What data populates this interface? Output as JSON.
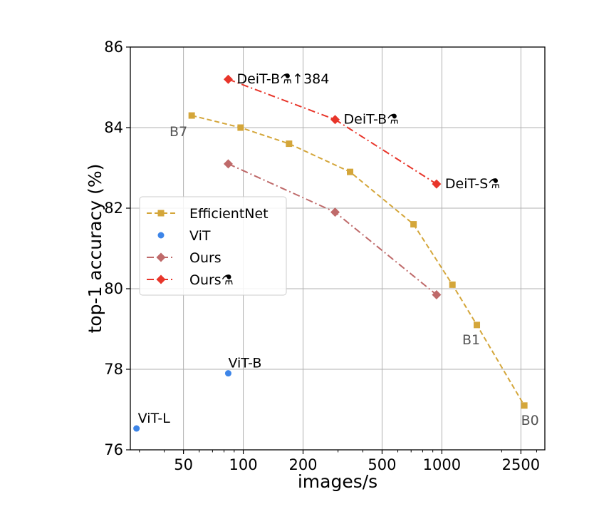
{
  "chart_data": {
    "type": "line",
    "title": "",
    "xlabel": "images/s",
    "ylabel": "top-1 accuracy (%)",
    "xscale": "log",
    "xlim": [
      27,
      3300
    ],
    "ylim": [
      76,
      86
    ],
    "xticks": [
      50,
      100,
      200,
      500,
      1000,
      2500
    ],
    "xtick_labels": [
      "50",
      "100",
      "200",
      "500",
      "1000",
      "2500"
    ],
    "yticks": [
      76,
      78,
      80,
      82,
      84,
      86
    ],
    "ytick_labels": [
      "76",
      "78",
      "80",
      "82",
      "84",
      "86"
    ],
    "grid": true,
    "legend_position": "center-left",
    "series": [
      {
        "name": "EfficientNet",
        "color": "#d4a63a",
        "marker": "square",
        "line": "dashed",
        "points": [
          {
            "x": 55,
            "y": 84.3,
            "label": "B7"
          },
          {
            "x": 97,
            "y": 84.0,
            "label": ""
          },
          {
            "x": 170,
            "y": 83.6,
            "label": ""
          },
          {
            "x": 345,
            "y": 82.9,
            "label": ""
          },
          {
            "x": 720,
            "y": 81.6,
            "label": ""
          },
          {
            "x": 1130,
            "y": 80.1,
            "label": ""
          },
          {
            "x": 1500,
            "y": 79.1,
            "label": "B1"
          },
          {
            "x": 2600,
            "y": 77.1,
            "label": "B0"
          }
        ]
      },
      {
        "name": "ViT",
        "color": "#3d85e8",
        "marker": "circle",
        "line": "none",
        "points": [
          {
            "x": 84,
            "y": 77.9,
            "label": "ViT-B"
          },
          {
            "x": 29,
            "y": 76.53,
            "label": "ViT-L"
          }
        ]
      },
      {
        "name": "Ours",
        "color": "#bf6a6a",
        "marker": "diamond",
        "line": "dashdot",
        "points": [
          {
            "x": 84,
            "y": 83.1,
            "label": ""
          },
          {
            "x": 290,
            "y": 81.9,
            "label": ""
          },
          {
            "x": 940,
            "y": 79.85,
            "label": ""
          }
        ]
      },
      {
        "name": "Ours⚗",
        "color": "#e8352a",
        "marker": "diamond",
        "line": "dashdot",
        "points": [
          {
            "x": 84,
            "y": 85.2,
            "label": "DeiT-B⚗↑384"
          },
          {
            "x": 290,
            "y": 84.2,
            "label": "DeiT-B⚗"
          },
          {
            "x": 940,
            "y": 82.6,
            "label": "DeiT-S⚗"
          }
        ]
      }
    ]
  }
}
